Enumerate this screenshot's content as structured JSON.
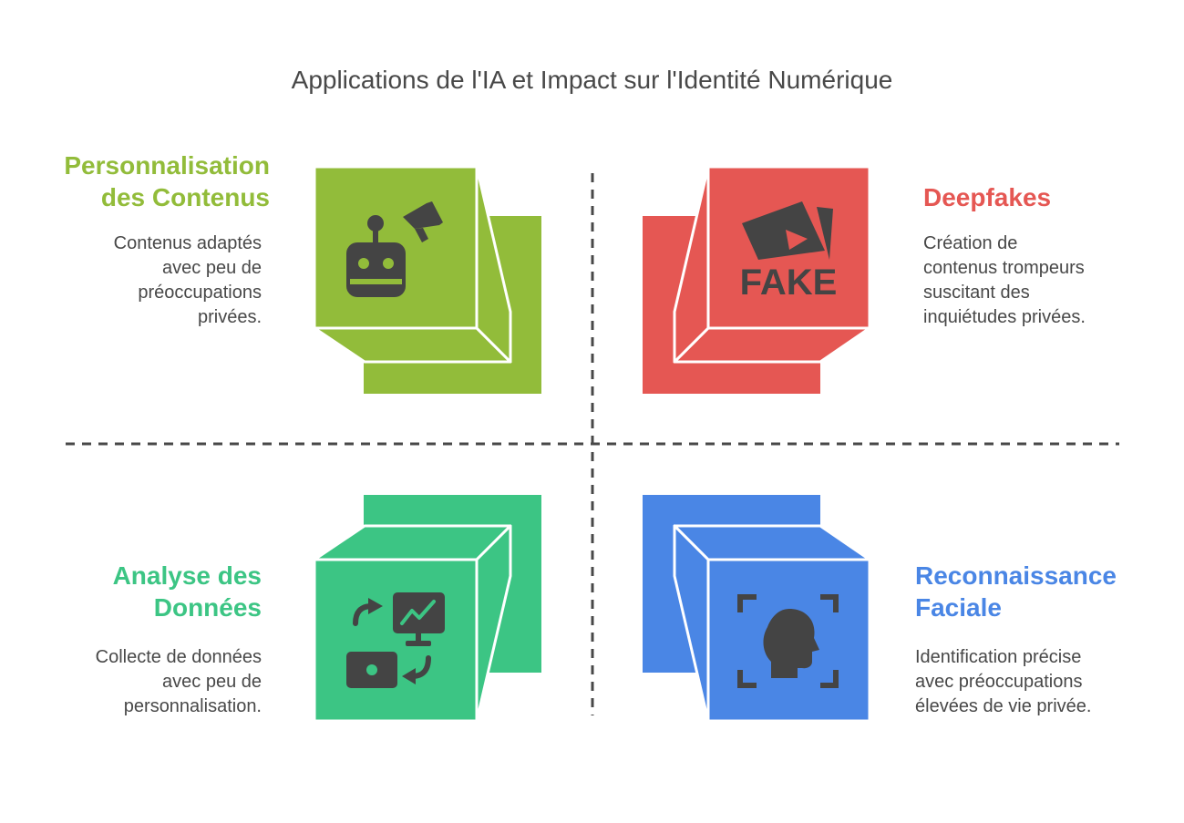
{
  "title": "Applications de l'IA et Impact sur l'Identité Numérique",
  "quadrants": [
    {
      "title": "Personnalisation\ndes Contenus",
      "description": "Contenus adaptés\navec peu de\npréoccupations\nprivées.",
      "color": "#92bc3a",
      "icon": "robot-megaphone-icon"
    },
    {
      "title": "Deepfakes",
      "description": "Création de\ncontenus trompeurs\nsuscitant des\ninquiétudes privées.",
      "color": "#e55753",
      "icon": "fake-video-icon",
      "icon_text": "FAKE"
    },
    {
      "title": "Analyse des\nDonnées",
      "description": "Collecte de données\navec peu de\npersonnalisation.",
      "color": "#3cc584",
      "icon": "data-analytics-icon"
    },
    {
      "title": "Reconnaissance\nFaciale",
      "description": "Identification précise\navec préoccupations\nélevées de vie privée.",
      "color": "#4a86e5",
      "icon": "face-scan-icon"
    }
  ]
}
